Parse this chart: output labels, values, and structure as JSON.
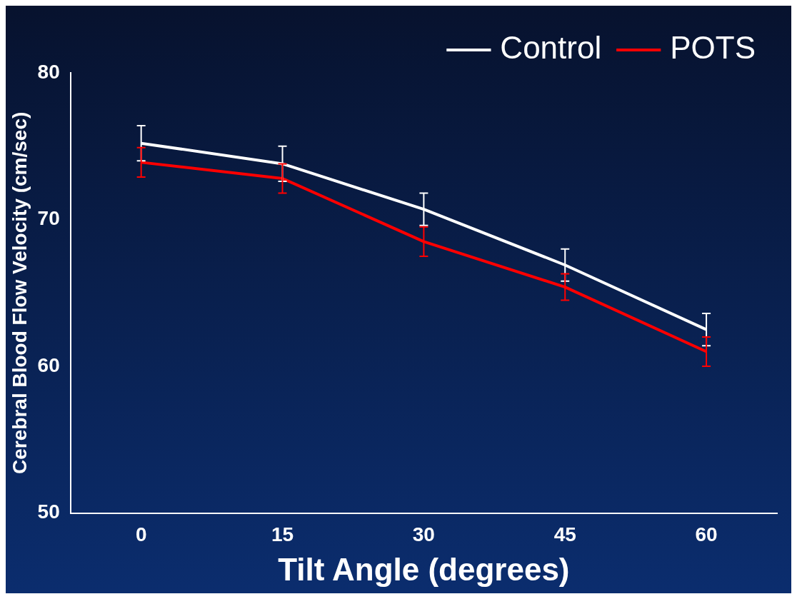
{
  "chart_data": {
    "type": "line",
    "xlabel": "Tilt Angle (degrees)",
    "ylabel": "Cerebral Blood Flow Velocity (cm/sec)",
    "x": [
      0,
      15,
      30,
      45,
      60
    ],
    "series": [
      {
        "name": "Control",
        "color": "#ffffff",
        "values": [
          75.2,
          73.8,
          70.7,
          66.9,
          62.5
        ],
        "errors": [
          1.2,
          1.2,
          1.1,
          1.1,
          1.1
        ]
      },
      {
        "name": "POTS",
        "color": "#ff0000",
        "values": [
          73.9,
          72.8,
          68.5,
          65.4,
          61.0
        ],
        "errors": [
          1.0,
          1.0,
          1.0,
          0.9,
          1.0
        ]
      }
    ],
    "xlim": [
      -7.5,
      67.5
    ],
    "xticks": [
      0,
      15,
      30,
      45,
      60
    ],
    "ylim": [
      50,
      80
    ],
    "yticks": [
      50,
      60,
      70,
      80
    ],
    "grid": false,
    "legend": "top right",
    "marker": "none",
    "line_style": "solid"
  }
}
